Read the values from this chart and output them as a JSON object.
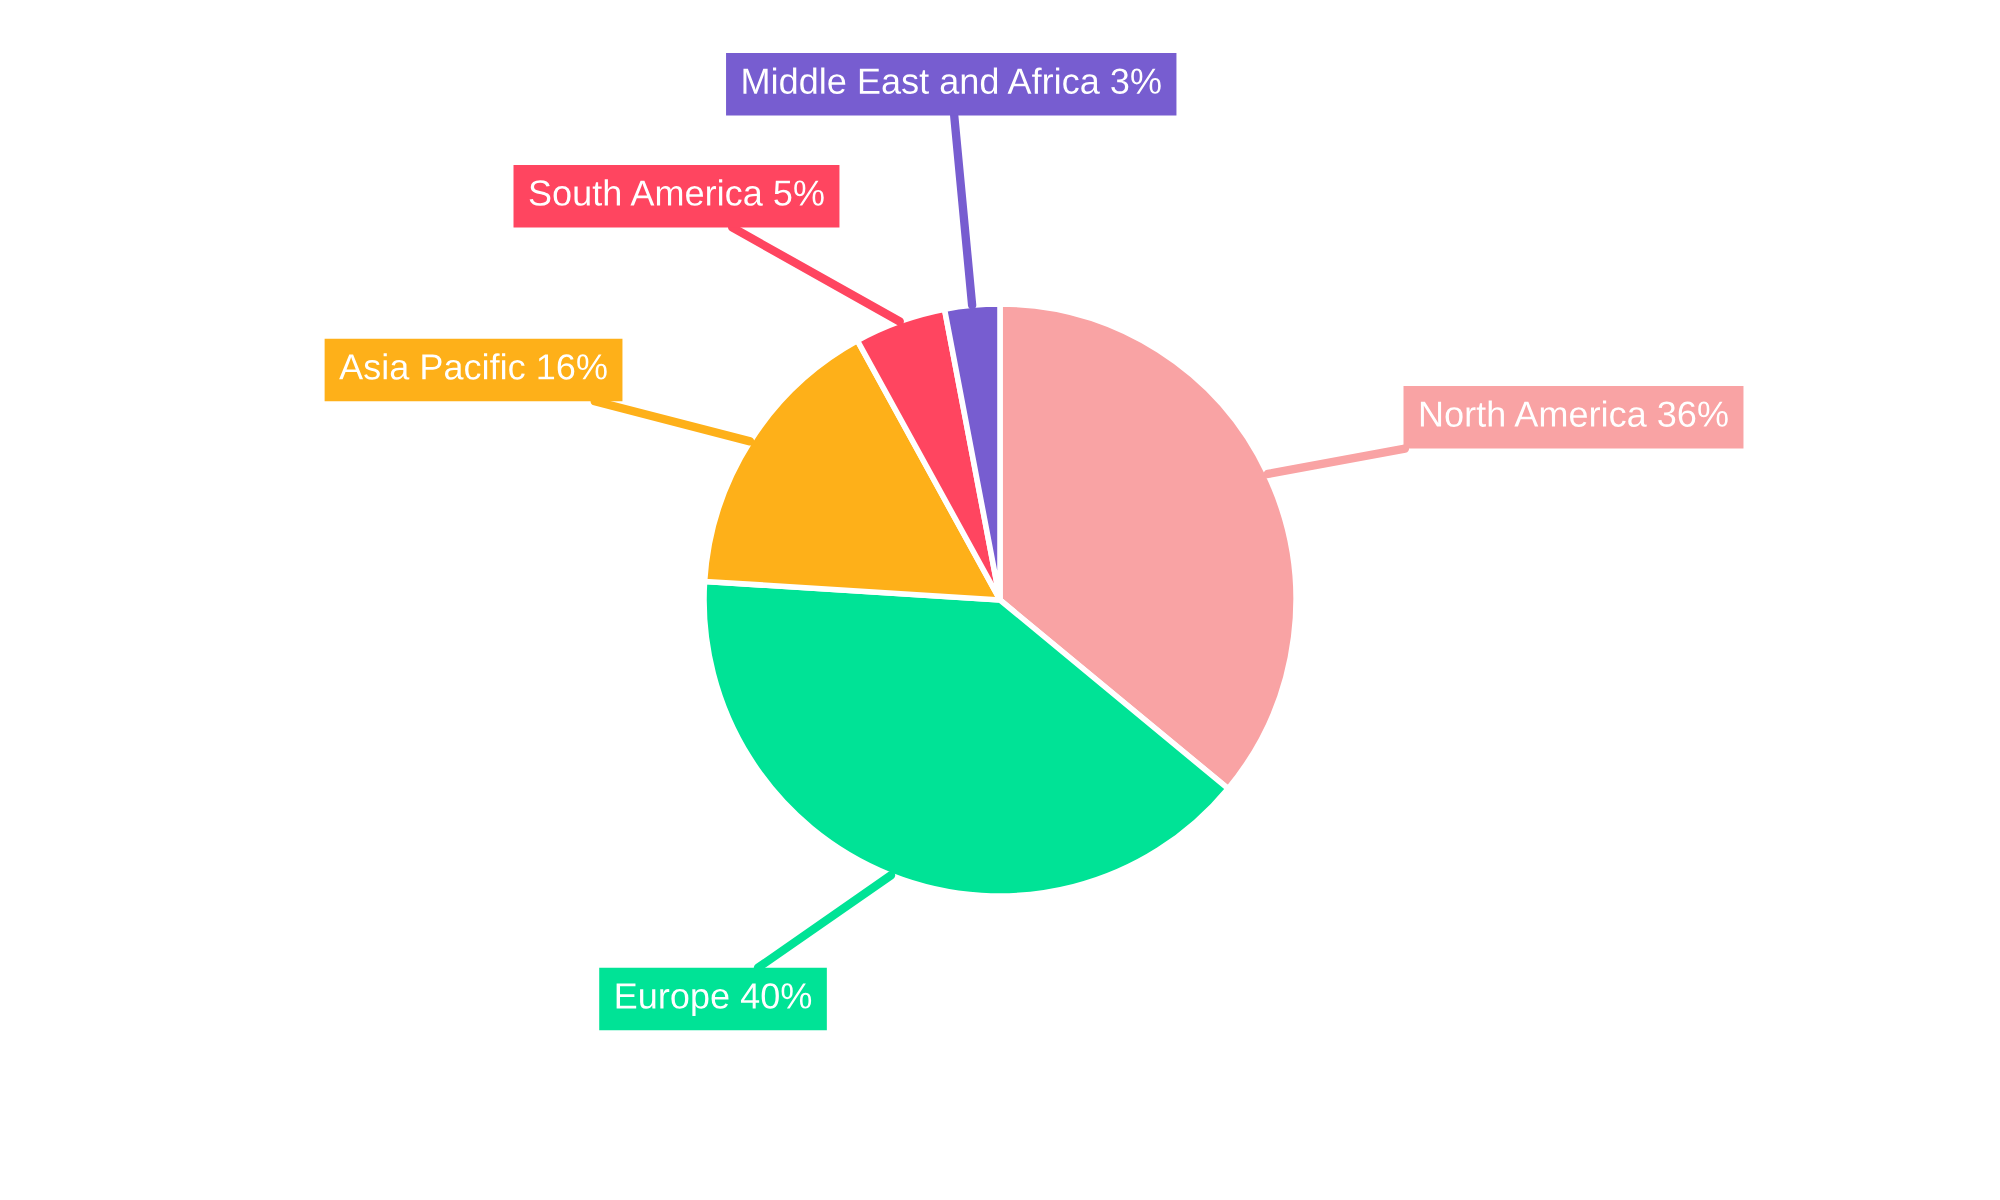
{
  "chart_data": {
    "type": "pie",
    "categories": [
      "North America",
      "Europe",
      "Asia Pacific",
      "South America",
      "Middle East and Africa"
    ],
    "values": [
      36,
      40,
      16,
      5,
      3
    ],
    "value_labels": [
      "36%",
      "40%",
      "16%",
      "5%",
      "3%"
    ],
    "colors": [
      "#f9a3a4",
      "#00e396",
      "#feb019",
      "#ff4560",
      "#775dd0"
    ],
    "legend": false
  }
}
